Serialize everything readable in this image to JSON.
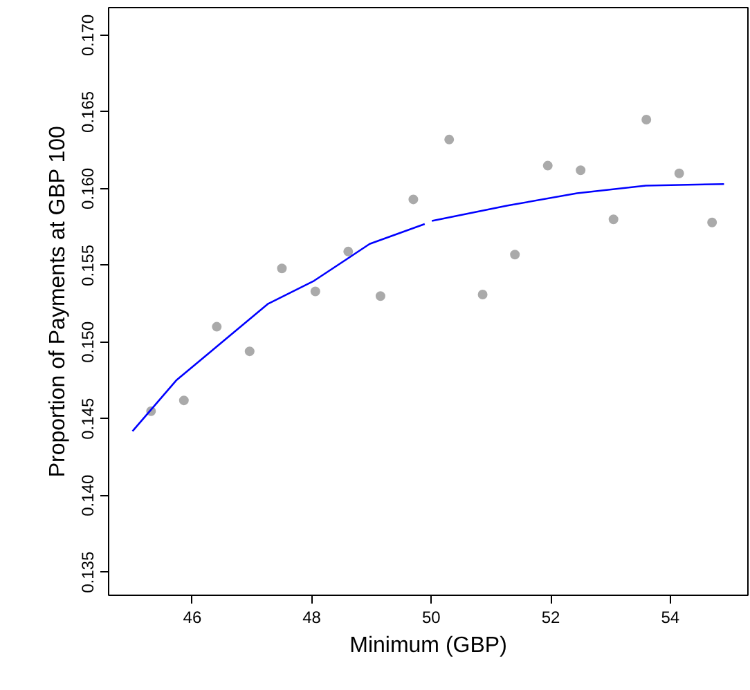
{
  "chart_data": {
    "type": "scatter",
    "xlabel": "Minimum (GBP)",
    "ylabel": "Proportion of Payments at GBP 100",
    "xlim": [
      44.6,
      55.3
    ],
    "ylim": [
      0.1335,
      0.1718
    ],
    "xticks": [
      46,
      48,
      50,
      52,
      54
    ],
    "yticks": [
      {
        "value": 0.135,
        "label": "0.135"
      },
      {
        "value": 0.14,
        "label": "0.140"
      },
      {
        "value": 0.145,
        "label": "0.145"
      },
      {
        "value": 0.15,
        "label": "0.150"
      },
      {
        "value": 0.155,
        "label": "0.155"
      },
      {
        "value": 0.16,
        "label": "0.160"
      },
      {
        "value": 0.165,
        "label": "0.165"
      },
      {
        "value": 0.17,
        "label": "0.170"
      }
    ],
    "grid": false,
    "series": [
      {
        "marker": "circle",
        "color": "#aaaaaa",
        "x": [
          45.31,
          45.86,
          46.41,
          46.96,
          47.5,
          48.06,
          48.61,
          49.15,
          49.7,
          50.3,
          50.86,
          51.4,
          51.95,
          52.5,
          53.05,
          53.6,
          54.15,
          54.7
        ],
        "values": [
          0.1455,
          0.1462,
          0.151,
          0.1494,
          0.1548,
          0.1533,
          0.1559,
          0.153,
          0.1593,
          0.1632,
          0.1531,
          0.1557,
          0.1615,
          0.1612,
          0.158,
          0.1645,
          0.161,
          0.1578
        ]
      },
      {
        "type": "line",
        "marker": "none",
        "color": "#0000ff",
        "x": [
          45.0,
          45.73,
          46.5,
          47.27,
          48.04,
          48.97,
          49.89
        ],
        "values": [
          0.1442,
          0.1475,
          0.15,
          0.1525,
          0.154,
          0.1564,
          0.1577
        ]
      },
      {
        "type": "line",
        "marker": "none",
        "color": "#0000ff",
        "x": [
          50.01,
          51.28,
          52.44,
          53.59,
          54.9
        ],
        "values": [
          0.1579,
          0.1589,
          0.1597,
          0.1602,
          0.1603
        ]
      }
    ]
  }
}
